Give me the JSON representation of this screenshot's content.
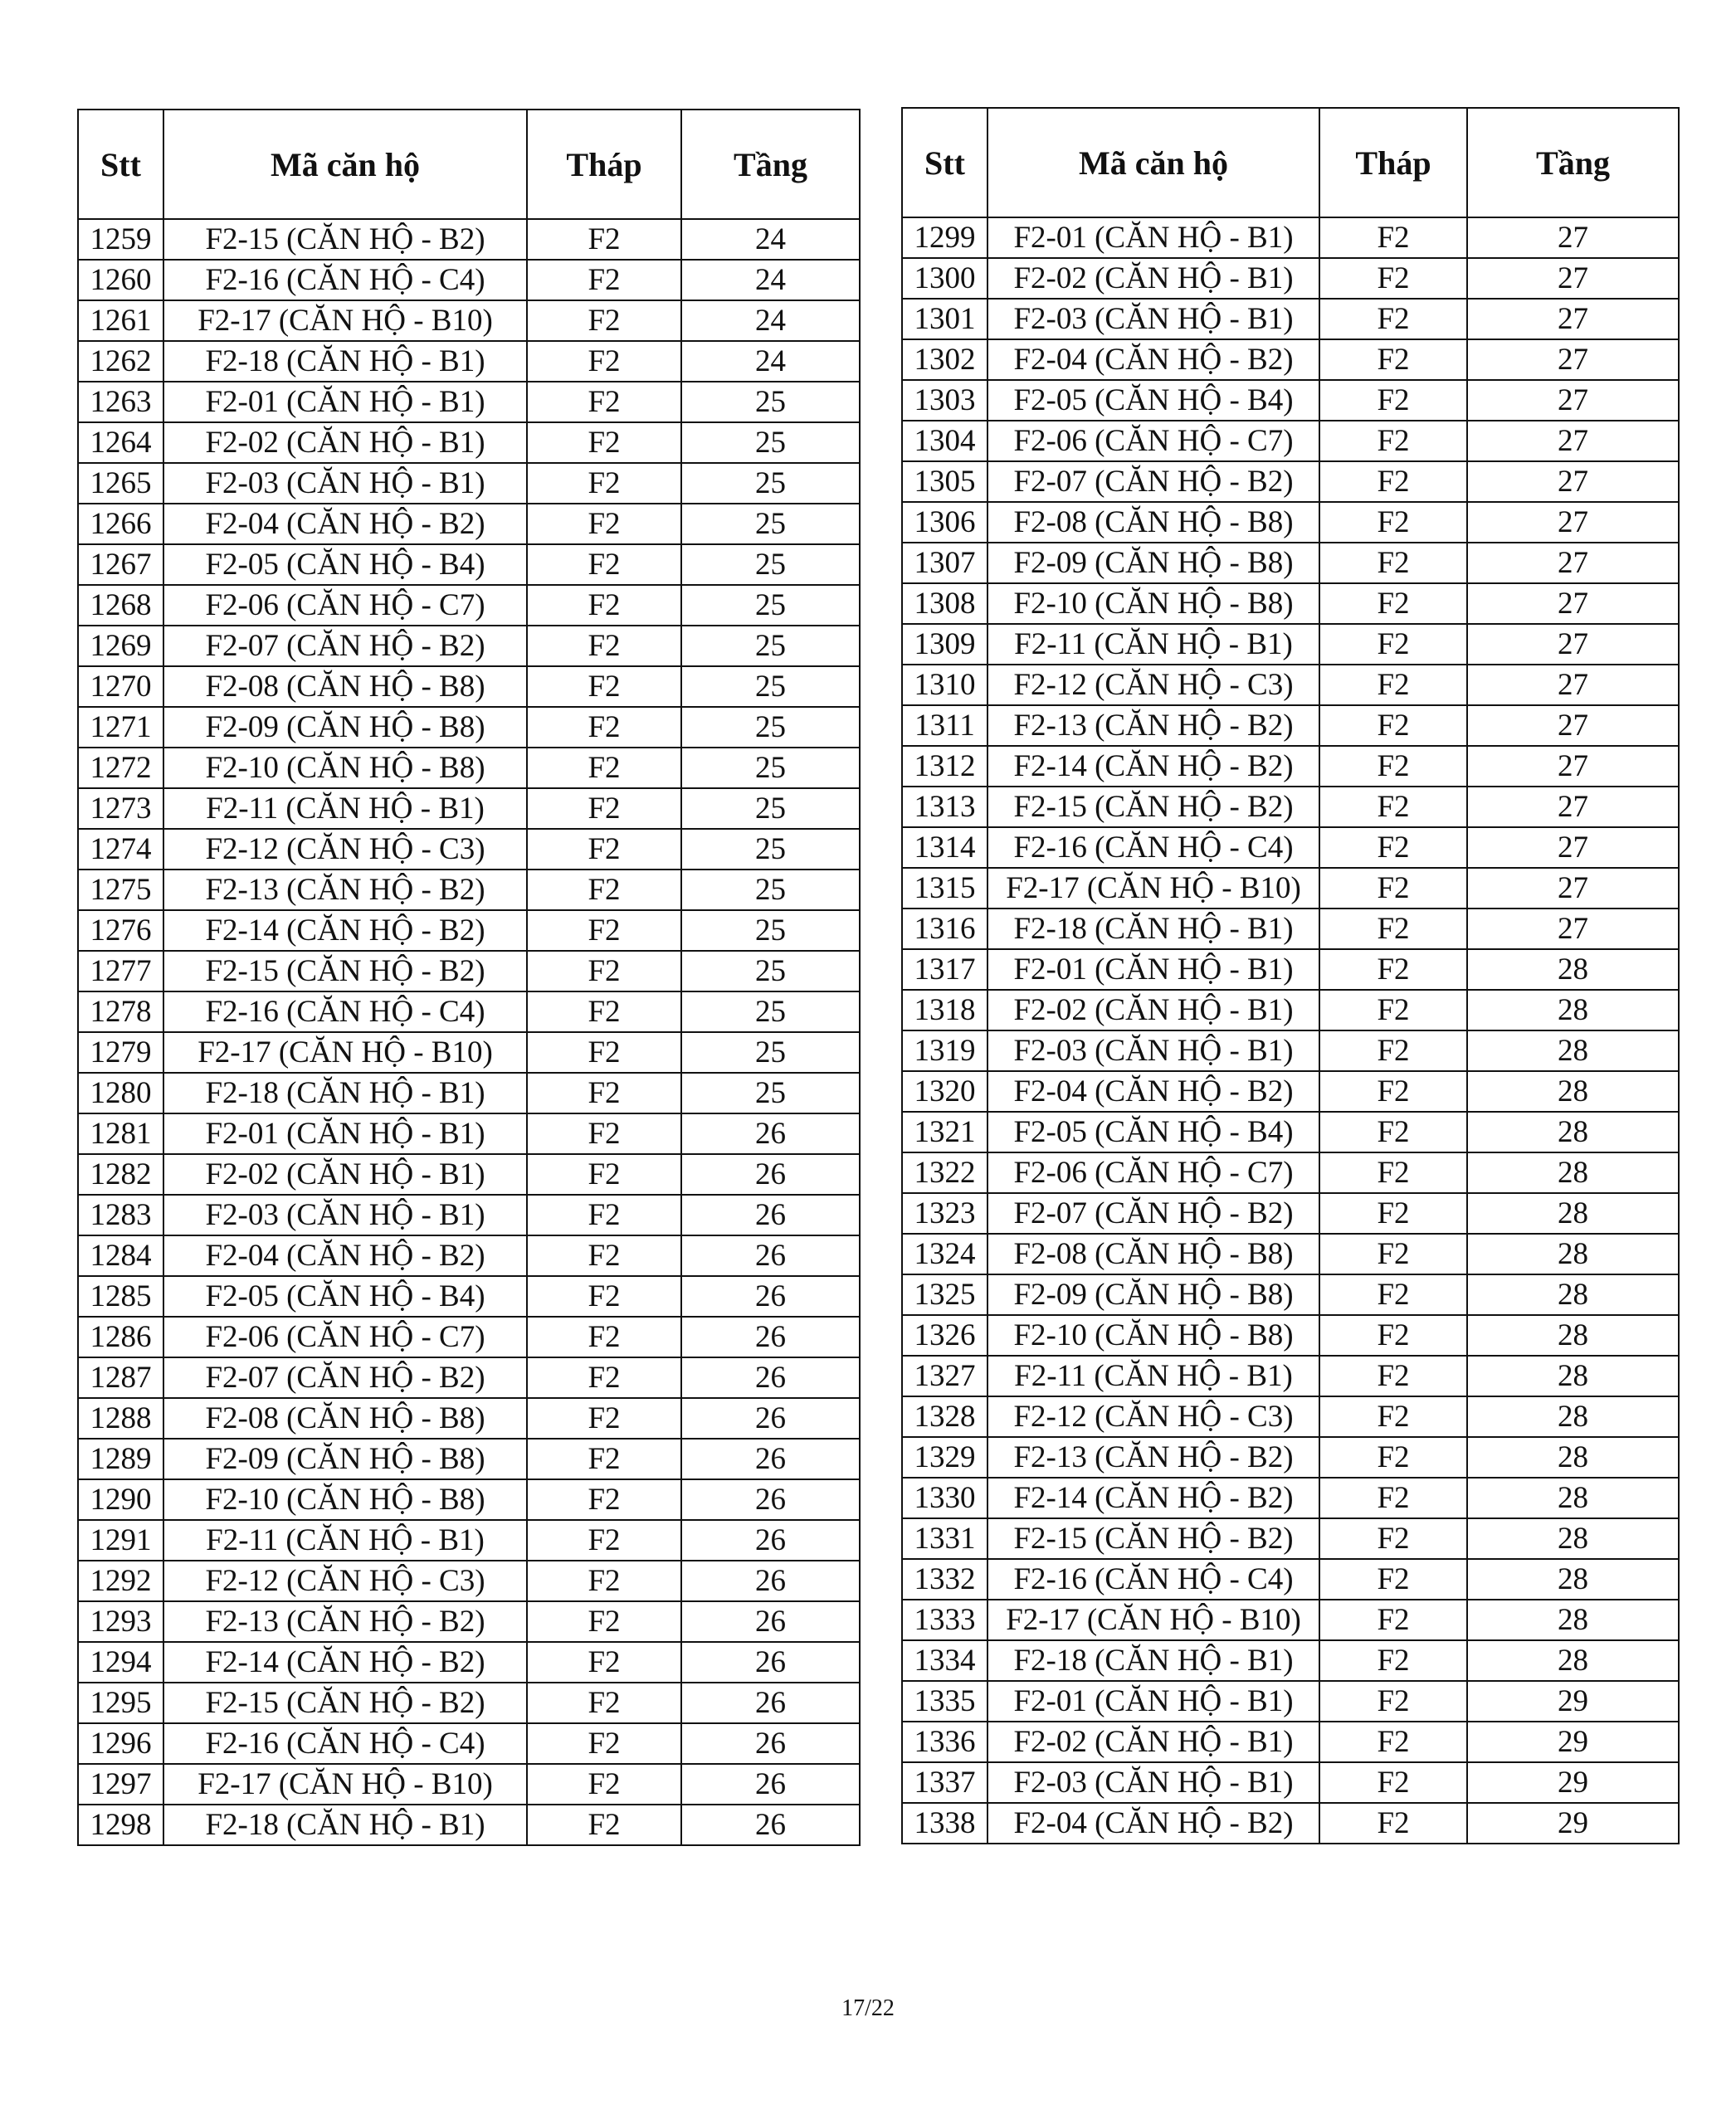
{
  "tables": [
    {
      "header": [
        "Stt",
        "Mã căn hộ",
        "Tháp",
        "Tầng"
      ],
      "rows": [
        [
          "1259",
          "F2-15 (CĂN HỘ - B2)",
          "F2",
          "24"
        ],
        [
          "1260",
          "F2-16 (CĂN HỘ - C4)",
          "F2",
          "24"
        ],
        [
          "1261",
          "F2-17 (CĂN HỘ - B10)",
          "F2",
          "24"
        ],
        [
          "1262",
          "F2-18 (CĂN HỘ - B1)",
          "F2",
          "24"
        ],
        [
          "1263",
          "F2-01 (CĂN HỘ - B1)",
          "F2",
          "25"
        ],
        [
          "1264",
          "F2-02 (CĂN HỘ - B1)",
          "F2",
          "25"
        ],
        [
          "1265",
          "F2-03 (CĂN HỘ - B1)",
          "F2",
          "25"
        ],
        [
          "1266",
          "F2-04 (CĂN HỘ - B2)",
          "F2",
          "25"
        ],
        [
          "1267",
          "F2-05 (CĂN HỘ - B4)",
          "F2",
          "25"
        ],
        [
          "1268",
          "F2-06 (CĂN HỘ - C7)",
          "F2",
          "25"
        ],
        [
          "1269",
          "F2-07 (CĂN HỘ - B2)",
          "F2",
          "25"
        ],
        [
          "1270",
          "F2-08 (CĂN HỘ - B8)",
          "F2",
          "25"
        ],
        [
          "1271",
          "F2-09 (CĂN HỘ - B8)",
          "F2",
          "25"
        ],
        [
          "1272",
          "F2-10 (CĂN HỘ - B8)",
          "F2",
          "25"
        ],
        [
          "1273",
          "F2-11 (CĂN HỘ - B1)",
          "F2",
          "25"
        ],
        [
          "1274",
          "F2-12 (CĂN HỘ - C3)",
          "F2",
          "25"
        ],
        [
          "1275",
          "F2-13 (CĂN HỘ - B2)",
          "F2",
          "25"
        ],
        [
          "1276",
          "F2-14 (CĂN HỘ - B2)",
          "F2",
          "25"
        ],
        [
          "1277",
          "F2-15 (CĂN HỘ - B2)",
          "F2",
          "25"
        ],
        [
          "1278",
          "F2-16 (CĂN HỘ - C4)",
          "F2",
          "25"
        ],
        [
          "1279",
          "F2-17 (CĂN HỘ - B10)",
          "F2",
          "25"
        ],
        [
          "1280",
          "F2-18 (CĂN HỘ - B1)",
          "F2",
          "25"
        ],
        [
          "1281",
          "F2-01 (CĂN HỘ - B1)",
          "F2",
          "26"
        ],
        [
          "1282",
          "F2-02 (CĂN HỘ - B1)",
          "F2",
          "26"
        ],
        [
          "1283",
          "F2-03 (CĂN HỘ - B1)",
          "F2",
          "26"
        ],
        [
          "1284",
          "F2-04 (CĂN HỘ - B2)",
          "F2",
          "26"
        ],
        [
          "1285",
          "F2-05 (CĂN HỘ - B4)",
          "F2",
          "26"
        ],
        [
          "1286",
          "F2-06 (CĂN HỘ - C7)",
          "F2",
          "26"
        ],
        [
          "1287",
          "F2-07 (CĂN HỘ - B2)",
          "F2",
          "26"
        ],
        [
          "1288",
          "F2-08 (CĂN HỘ - B8)",
          "F2",
          "26"
        ],
        [
          "1289",
          "F2-09 (CĂN HỘ - B8)",
          "F2",
          "26"
        ],
        [
          "1290",
          "F2-10 (CĂN HỘ - B8)",
          "F2",
          "26"
        ],
        [
          "1291",
          "F2-11 (CĂN HỘ - B1)",
          "F2",
          "26"
        ],
        [
          "1292",
          "F2-12 (CĂN HỘ - C3)",
          "F2",
          "26"
        ],
        [
          "1293",
          "F2-13 (CĂN HỘ - B2)",
          "F2",
          "26"
        ],
        [
          "1294",
          "F2-14 (CĂN HỘ - B2)",
          "F2",
          "26"
        ],
        [
          "1295",
          "F2-15 (CĂN HỘ - B2)",
          "F2",
          "26"
        ],
        [
          "1296",
          "F2-16 (CĂN HỘ - C4)",
          "F2",
          "26"
        ],
        [
          "1297",
          "F2-17 (CĂN HỘ - B10)",
          "F2",
          "26"
        ],
        [
          "1298",
          "F2-18 (CĂN HỘ - B1)",
          "F2",
          "26"
        ]
      ]
    },
    {
      "header": [
        "Stt",
        "Mã căn hộ",
        "Tháp",
        "Tầng"
      ],
      "rows": [
        [
          "1299",
          "F2-01 (CĂN HỘ - B1)",
          "F2",
          "27"
        ],
        [
          "1300",
          "F2-02 (CĂN HỘ - B1)",
          "F2",
          "27"
        ],
        [
          "1301",
          "F2-03 (CĂN HỘ - B1)",
          "F2",
          "27"
        ],
        [
          "1302",
          "F2-04 (CĂN HỘ - B2)",
          "F2",
          "27"
        ],
        [
          "1303",
          "F2-05 (CĂN HỘ - B4)",
          "F2",
          "27"
        ],
        [
          "1304",
          "F2-06 (CĂN HỘ - C7)",
          "F2",
          "27"
        ],
        [
          "1305",
          "F2-07 (CĂN HỘ - B2)",
          "F2",
          "27"
        ],
        [
          "1306",
          "F2-08 (CĂN HỘ - B8)",
          "F2",
          "27"
        ],
        [
          "1307",
          "F2-09 (CĂN HỘ - B8)",
          "F2",
          "27"
        ],
        [
          "1308",
          "F2-10 (CĂN HỘ - B8)",
          "F2",
          "27"
        ],
        [
          "1309",
          "F2-11 (CĂN HỘ - B1)",
          "F2",
          "27"
        ],
        [
          "1310",
          "F2-12 (CĂN HỘ - C3)",
          "F2",
          "27"
        ],
        [
          "1311",
          "F2-13 (CĂN HỘ - B2)",
          "F2",
          "27"
        ],
        [
          "1312",
          "F2-14 (CĂN HỘ - B2)",
          "F2",
          "27"
        ],
        [
          "1313",
          "F2-15 (CĂN HỘ - B2)",
          "F2",
          "27"
        ],
        [
          "1314",
          "F2-16 (CĂN HỘ - C4)",
          "F2",
          "27"
        ],
        [
          "1315",
          "F2-17 (CĂN HỘ - B10)",
          "F2",
          "27"
        ],
        [
          "1316",
          "F2-18 (CĂN HỘ - B1)",
          "F2",
          "27"
        ],
        [
          "1317",
          "F2-01 (CĂN HỘ - B1)",
          "F2",
          "28"
        ],
        [
          "1318",
          "F2-02 (CĂN HỘ - B1)",
          "F2",
          "28"
        ],
        [
          "1319",
          "F2-03 (CĂN HỘ - B1)",
          "F2",
          "28"
        ],
        [
          "1320",
          "F2-04 (CĂN HỘ - B2)",
          "F2",
          "28"
        ],
        [
          "1321",
          "F2-05 (CĂN HỘ - B4)",
          "F2",
          "28"
        ],
        [
          "1322",
          "F2-06 (CĂN HỘ - C7)",
          "F2",
          "28"
        ],
        [
          "1323",
          "F2-07 (CĂN HỘ - B2)",
          "F2",
          "28"
        ],
        [
          "1324",
          "F2-08 (CĂN HỘ - B8)",
          "F2",
          "28"
        ],
        [
          "1325",
          "F2-09 (CĂN HỘ - B8)",
          "F2",
          "28"
        ],
        [
          "1326",
          "F2-10 (CĂN HỘ - B8)",
          "F2",
          "28"
        ],
        [
          "1327",
          "F2-11 (CĂN HỘ - B1)",
          "F2",
          "28"
        ],
        [
          "1328",
          "F2-12 (CĂN HỘ - C3)",
          "F2",
          "28"
        ],
        [
          "1329",
          "F2-13 (CĂN HỘ - B2)",
          "F2",
          "28"
        ],
        [
          "1330",
          "F2-14 (CĂN HỘ - B2)",
          "F2",
          "28"
        ],
        [
          "1331",
          "F2-15 (CĂN HỘ - B2)",
          "F2",
          "28"
        ],
        [
          "1332",
          "F2-16 (CĂN HỘ - C4)",
          "F2",
          "28"
        ],
        [
          "1333",
          "F2-17 (CĂN HỘ - B10)",
          "F2",
          "28"
        ],
        [
          "1334",
          "F2-18 (CĂN HỘ - B1)",
          "F2",
          "28"
        ],
        [
          "1335",
          "F2-01 (CĂN HỘ - B1)",
          "F2",
          "29"
        ],
        [
          "1336",
          "F2-02 (CĂN HỘ - B1)",
          "F2",
          "29"
        ],
        [
          "1337",
          "F2-03 (CĂN HỘ - B1)",
          "F2",
          "29"
        ],
        [
          "1338",
          "F2-04 (CĂN HỘ - B2)",
          "F2",
          "29"
        ]
      ]
    }
  ],
  "footer": {
    "page": "17/22"
  }
}
